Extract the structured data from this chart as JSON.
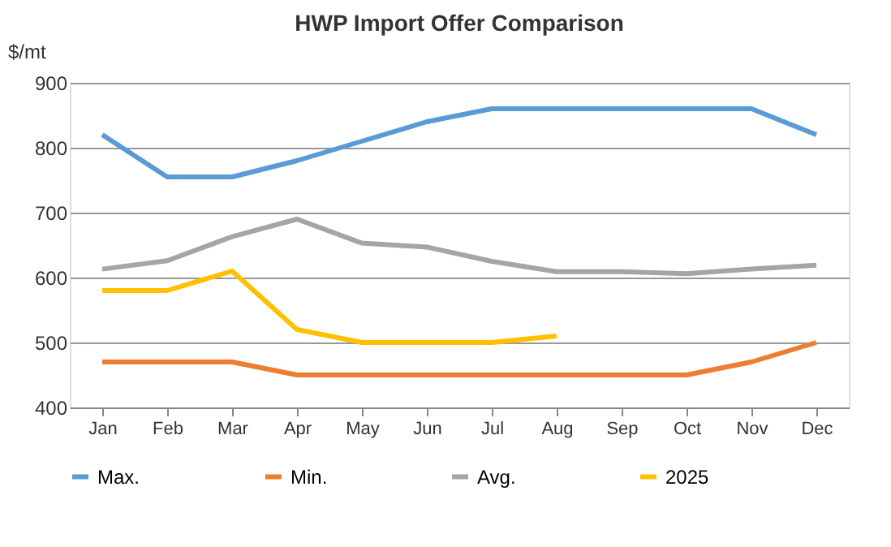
{
  "chart_data": {
    "type": "line",
    "title": "HWP Import Offer Comparison",
    "ylabel": "$/mt",
    "categories": [
      "Jan",
      "Feb",
      "Mar",
      "Apr",
      "May",
      "Jun",
      "Jul",
      "Aug",
      "Sep",
      "Oct",
      "Nov",
      "Dec"
    ],
    "series": [
      {
        "name": "Max.",
        "color": "#5b9bd5",
        "values": [
          820,
          755,
          755,
          780,
          810,
          840,
          860,
          860,
          860,
          860,
          860,
          820
        ]
      },
      {
        "name": "Min.",
        "color": "#ed7d31",
        "values": [
          470,
          470,
          470,
          450,
          450,
          450,
          450,
          450,
          450,
          450,
          470,
          500
        ]
      },
      {
        "name": "Avg.",
        "color": "#a5a5a5",
        "values": [
          613,
          626,
          663,
          690,
          653,
          647,
          625,
          609,
          609,
          606,
          613,
          619
        ]
      },
      {
        "name": "2025",
        "color": "#ffc000",
        "values": [
          580,
          580,
          610,
          520,
          500,
          500,
          500,
          510,
          null,
          null,
          null,
          null
        ]
      }
    ],
    "ylim": [
      400,
      900
    ],
    "yticks": [
      400,
      500,
      600,
      700,
      800,
      900
    ],
    "grid": "y",
    "legend": "bottom",
    "marker": "none",
    "line_style": "solid"
  }
}
